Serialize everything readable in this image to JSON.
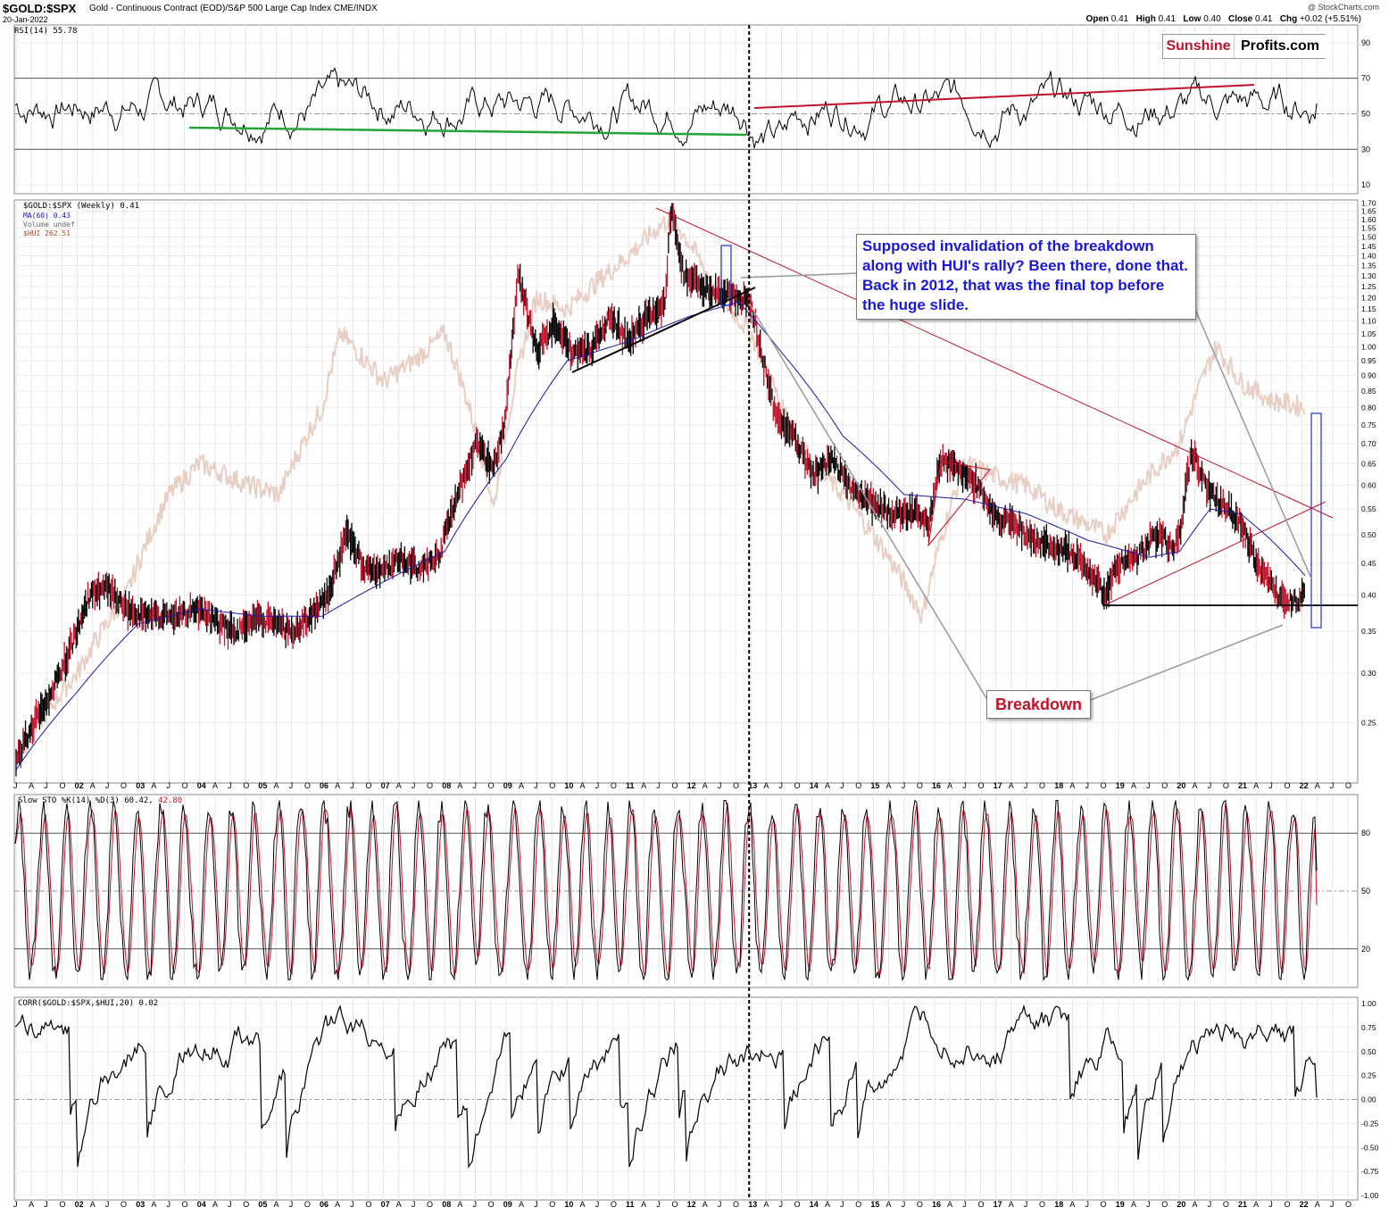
{
  "header": {
    "symbol": "$GOLD:$SPX",
    "description": "Gold - Continuous Contract (EOD)/S&P 500 Large Cap Index CME/INDX",
    "date": "20-Jan-2022",
    "credit": "@ StockCharts.com",
    "ohlc": {
      "open_label": "Open",
      "open": "0.41",
      "high_label": "High",
      "high": "0.41",
      "low_label": "Low",
      "low": "0.40",
      "close_label": "Close",
      "close": "0.41",
      "chg_label": "Chg",
      "chg": "+0.02 (+5.51%)"
    }
  },
  "logo": {
    "part1": "Sunshine",
    "part2": "Profits.com"
  },
  "annotations": {
    "callout": "Supposed invalidation of the breakdown along with HUI's rally? Been there, done that. Back in 2012, that was the final top before the huge slide.",
    "breakdown": "Breakdown"
  },
  "legends": {
    "rsi": "RSI(14) 55.78",
    "price": "$GOLD:$SPX (Weekly) 0.41",
    "ma": "MA(60) 0.43",
    "volume": "Volume undef",
    "hui": "$HUI 262.51",
    "sto_main": "Slow STO %K(14) %D(3) 60.42,",
    "sto_d": " 42.80",
    "corr": "CORR($GOLD:$SPX,$HUI,20) 0.02"
  },
  "colors": {
    "price_bars": "#000000",
    "down_bars": "#c0122a",
    "ma_line": "#1a18a0",
    "hui_line": "#e8cfc4",
    "green_trend": "#22a63a",
    "red_trend": "#c0122a",
    "sto_d": "#c0122a",
    "callout_text": "#1a18d8"
  },
  "chart_data": [
    {
      "type": "line",
      "panel": "RSI(14)",
      "y_ticks": [
        10,
        30,
        50,
        70,
        90
      ],
      "ylim": [
        5,
        100
      ],
      "reference_lines": [
        30,
        50,
        70
      ],
      "last_value": 55.78
    },
    {
      "type": "line",
      "panel": "$GOLD:$SPX (Weekly)",
      "scale": "log",
      "ylim": [
        0.2,
        1.72
      ],
      "y_ticks": [
        0.25,
        0.3,
        0.35,
        0.4,
        0.45,
        0.5,
        0.55,
        0.6,
        0.65,
        0.7,
        0.75,
        0.8,
        0.85,
        0.9,
        0.95,
        1.0,
        1.05,
        1.1,
        1.15,
        1.2,
        1.25,
        1.3,
        1.35,
        1.4,
        1.45,
        1.5,
        1.55,
        1.6,
        1.65,
        1.7
      ],
      "x_year_labels": [
        "02",
        "03",
        "04",
        "05",
        "06",
        "07",
        "08",
        "09",
        "10",
        "11",
        "12",
        "13",
        "14",
        "15",
        "16",
        "17",
        "18",
        "19",
        "20",
        "21",
        "22"
      ],
      "x_start_year": 2001,
      "series": [
        {
          "name": "$GOLD:$SPX (Weekly)",
          "x": [
            2001.0,
            2001.3,
            2001.6,
            2001.9,
            2002.2,
            2002.5,
            2002.8,
            2003.1,
            2003.4,
            2003.7,
            2004.0,
            2004.3,
            2004.6,
            2004.9,
            2005.2,
            2005.5,
            2005.8,
            2006.1,
            2006.4,
            2006.7,
            2007.0,
            2007.3,
            2007.6,
            2007.9,
            2008.2,
            2008.5,
            2008.8,
            2009.0,
            2009.2,
            2009.5,
            2009.8,
            2010.1,
            2010.4,
            2010.7,
            2011.0,
            2011.3,
            2011.6,
            2011.7,
            2011.9,
            2012.2,
            2012.5,
            2012.8,
            2013.0,
            2013.2,
            2013.4,
            2013.7,
            2014.0,
            2014.3,
            2014.6,
            2015.0,
            2015.3,
            2015.6,
            2015.9,
            2016.1,
            2016.4,
            2016.7,
            2017.0,
            2017.3,
            2017.6,
            2017.9,
            2018.2,
            2018.5,
            2018.8,
            2019.0,
            2019.3,
            2019.6,
            2019.9,
            2020.0,
            2020.2,
            2020.5,
            2020.8,
            2021.0,
            2021.3,
            2021.6,
            2021.9,
            2022.05
          ],
          "values": [
            0.22,
            0.25,
            0.28,
            0.33,
            0.4,
            0.41,
            0.38,
            0.37,
            0.37,
            0.37,
            0.38,
            0.36,
            0.35,
            0.37,
            0.36,
            0.35,
            0.37,
            0.4,
            0.5,
            0.44,
            0.44,
            0.46,
            0.44,
            0.46,
            0.57,
            0.7,
            0.64,
            0.77,
            1.3,
            0.98,
            1.1,
            0.97,
            1.0,
            1.12,
            1.02,
            1.12,
            1.18,
            1.68,
            1.3,
            1.25,
            1.22,
            1.2,
            1.18,
            0.95,
            0.78,
            0.72,
            0.62,
            0.66,
            0.6,
            0.56,
            0.54,
            0.55,
            0.52,
            0.66,
            0.64,
            0.6,
            0.53,
            0.52,
            0.49,
            0.48,
            0.47,
            0.44,
            0.4,
            0.45,
            0.46,
            0.5,
            0.48,
            0.5,
            0.68,
            0.58,
            0.55,
            0.52,
            0.44,
            0.4,
            0.39,
            0.41
          ]
        },
        {
          "name": "MA(60)",
          "x": [
            2001.0,
            2002.0,
            2003.0,
            2004.0,
            2005.0,
            2006.0,
            2007.0,
            2008.0,
            2009.0,
            2010.0,
            2011.0,
            2012.0,
            2012.8,
            2013.5,
            2014.5,
            2015.5,
            2016.5,
            2017.5,
            2018.5,
            2019.5,
            2020.0,
            2020.5,
            2021.0,
            2021.5,
            2022.05
          ],
          "values": [
            0.21,
            0.28,
            0.36,
            0.38,
            0.37,
            0.37,
            0.42,
            0.47,
            0.66,
            0.95,
            1.02,
            1.12,
            1.18,
            0.98,
            0.72,
            0.58,
            0.57,
            0.54,
            0.49,
            0.46,
            0.47,
            0.55,
            0.54,
            0.49,
            0.43
          ]
        },
        {
          "name": "$HUI",
          "x": [
            2001.0,
            2002.0,
            2002.8,
            2003.5,
            2004.0,
            2004.8,
            2005.3,
            2006.0,
            2006.3,
            2007.0,
            2007.5,
            2008.0,
            2008.8,
            2009.5,
            2010.0,
            2011.0,
            2011.7,
            2012.5,
            2013.0,
            2013.5,
            2014.0,
            2014.5,
            2015.0,
            2015.8,
            2016.5,
            2017.0,
            2017.5,
            2018.0,
            2018.8,
            2019.5,
            2020.0,
            2020.6,
            2021.0,
            2021.5,
            2022.05
          ],
          "values": [
            0.22,
            0.3,
            0.4,
            0.58,
            0.65,
            0.6,
            0.58,
            0.8,
            1.05,
            0.88,
            0.95,
            1.05,
            0.55,
            1.2,
            1.15,
            1.4,
            1.62,
            1.2,
            1.05,
            0.8,
            0.65,
            0.58,
            0.5,
            0.37,
            0.65,
            0.62,
            0.6,
            0.55,
            0.5,
            0.62,
            0.7,
            1.0,
            0.88,
            0.82,
            0.8
          ]
        }
      ],
      "annotations": [
        "Breakdown",
        "Supposed invalidation of the breakdown along with HUI's rally? Been there, done that. Back in 2012, that was the final top before the huge slide."
      ]
    },
    {
      "type": "line",
      "panel": "Slow STO %K(14) %D(3)",
      "y_ticks": [
        20,
        50,
        80
      ],
      "ylim": [
        0,
        100
      ],
      "series": [
        {
          "name": "%K",
          "last": 60.42
        },
        {
          "name": "%D",
          "last": 42.8
        }
      ]
    },
    {
      "type": "line",
      "panel": "CORR($GOLD:$SPX,$HUI,20)",
      "y_ticks": [
        -1.0,
        -0.75,
        -0.5,
        -0.25,
        0.0,
        0.25,
        0.5,
        0.75,
        1.0
      ],
      "ylim": [
        -1.0,
        1.0
      ],
      "last_value": 0.02
    }
  ]
}
